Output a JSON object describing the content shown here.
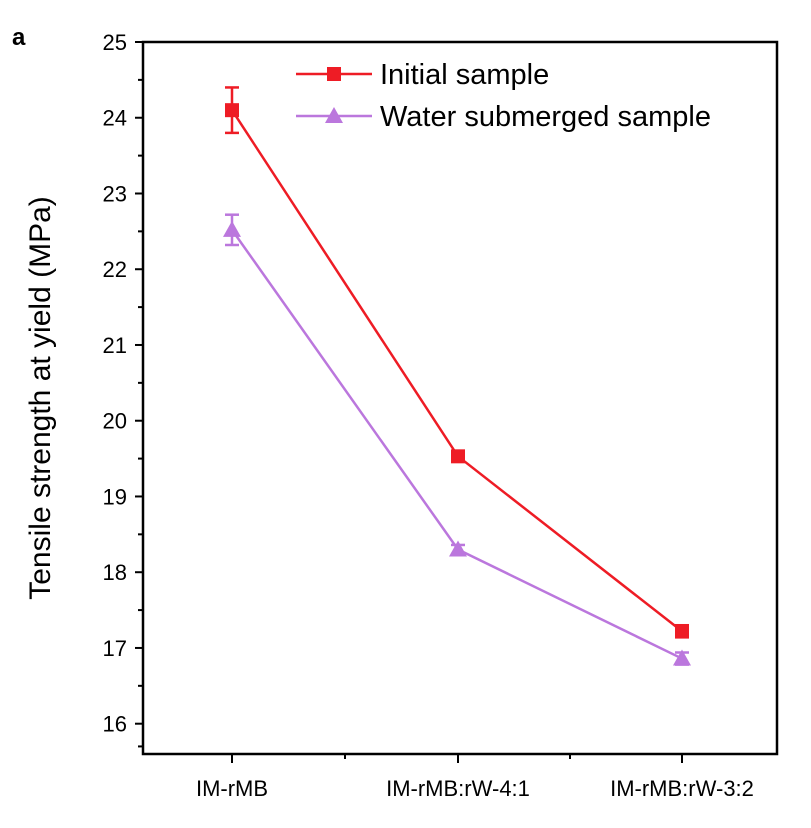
{
  "chart_data": {
    "type": "line",
    "panel_label": "a",
    "title": "",
    "xlabel": "",
    "ylabel": "Tensile strength at yield (MPa)",
    "categories": [
      "IM-rMB",
      "IM-rMB:rW-4:1",
      "IM-rMB:rW-3:2"
    ],
    "ylim": [
      15.6,
      25
    ],
    "yticks": [
      16,
      17,
      18,
      19,
      20,
      21,
      22,
      23,
      24,
      25
    ],
    "ytick_labels": [
      "16",
      "17",
      "18",
      "19",
      "20",
      "21",
      "22",
      "23",
      "24",
      "25"
    ],
    "grid": false,
    "legend_position": "top-right",
    "series": [
      {
        "name": "Initial sample",
        "color": "#ee1c25",
        "marker": "square",
        "values": [
          24.1,
          19.53,
          17.22
        ],
        "errors": [
          0.3,
          0.06,
          0.08
        ]
      },
      {
        "name": "Water submerged sample",
        "color": "#bb77dd",
        "marker": "triangle",
        "values": [
          22.52,
          18.3,
          16.86
        ],
        "errors": [
          0.2,
          0.06,
          0.08
        ]
      }
    ]
  }
}
